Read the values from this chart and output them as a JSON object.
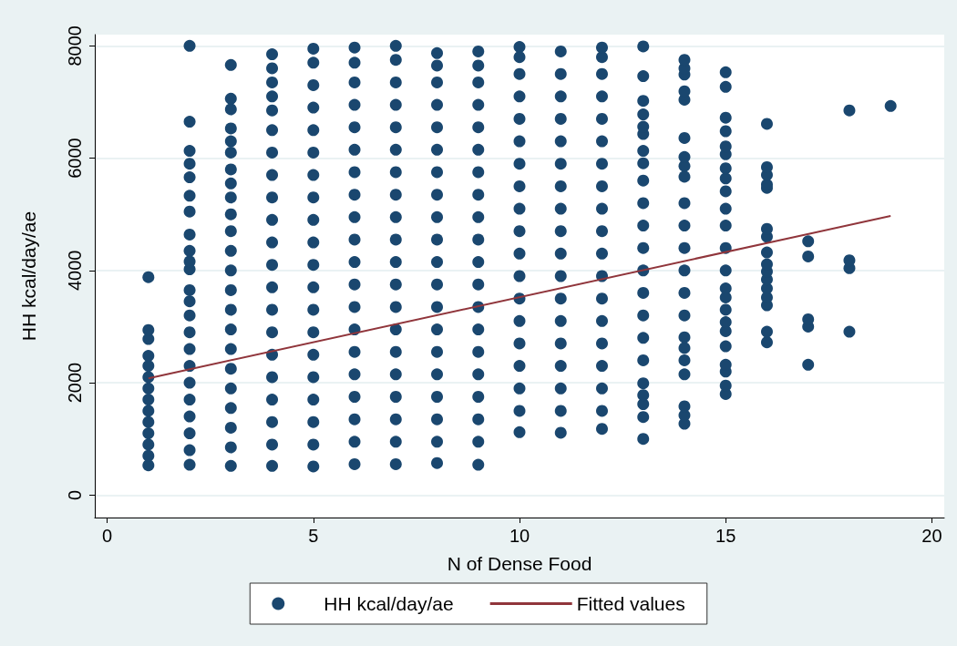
{
  "chart_data": {
    "type": "scatter",
    "xlabel": "N of Dense Food",
    "ylabel": "HH kcal/day/ae",
    "xlim": [
      -0.3,
      20.3
    ],
    "xticks": [
      0,
      5,
      10,
      15,
      20
    ],
    "ylim": [
      -400,
      8200
    ],
    "yticks": [
      0,
      2000,
      4000,
      6000,
      8000
    ],
    "grid": "y",
    "legend": "bottom",
    "series": [
      {
        "name": "HH kcal/day/ae",
        "type": "scatter",
        "color": "#1a476f",
        "marker": "circle",
        "x": [
          1,
          1,
          1,
          1,
          1,
          1,
          1,
          1,
          1,
          1,
          1,
          1,
          1,
          1,
          2,
          2,
          2,
          2,
          2,
          2,
          2,
          2,
          2,
          2,
          2,
          2,
          2,
          2,
          2,
          2,
          2,
          2,
          2,
          2,
          2,
          2,
          2,
          3,
          3,
          3,
          3,
          3,
          3,
          3,
          3,
          3,
          3,
          3,
          3,
          3,
          3,
          3,
          3,
          3,
          3,
          3,
          3,
          3,
          3,
          3,
          4,
          4,
          4,
          4,
          4,
          4,
          4,
          4,
          4,
          4,
          4,
          4,
          4,
          4,
          4,
          4,
          4,
          4,
          4,
          4,
          4,
          5,
          5,
          5,
          5,
          5,
          5,
          5,
          5,
          5,
          5,
          5,
          5,
          5,
          5,
          5,
          5,
          5,
          5,
          5,
          5,
          6,
          6,
          6,
          6,
          6,
          6,
          6,
          6,
          6,
          6,
          6,
          6,
          6,
          6,
          6,
          6,
          6,
          6,
          6,
          6,
          7,
          7,
          7,
          7,
          7,
          7,
          7,
          7,
          7,
          7,
          7,
          7,
          7,
          7,
          7,
          7,
          7,
          7,
          7,
          7,
          8,
          8,
          8,
          8,
          8,
          8,
          8,
          8,
          8,
          8,
          8,
          8,
          8,
          8,
          8,
          8,
          8,
          8,
          8,
          8,
          9,
          9,
          9,
          9,
          9,
          9,
          9,
          9,
          9,
          9,
          9,
          9,
          9,
          9,
          9,
          9,
          9,
          9,
          9,
          9,
          10,
          10,
          10,
          10,
          10,
          10,
          10,
          10,
          10,
          10,
          10,
          10,
          10,
          10,
          10,
          10,
          10,
          10,
          10,
          11,
          11,
          11,
          11,
          11,
          11,
          11,
          11,
          11,
          11,
          11,
          11,
          11,
          11,
          11,
          11,
          11,
          11,
          12,
          12,
          12,
          12,
          12,
          12,
          12,
          12,
          12,
          12,
          12,
          12,
          12,
          12,
          12,
          12,
          12,
          12,
          12,
          13,
          13,
          13,
          13,
          13,
          13,
          13,
          13,
          13,
          13,
          13,
          13,
          13,
          13,
          13,
          13,
          13,
          13,
          13,
          13,
          13,
          13,
          14,
          14,
          14,
          14,
          14,
          14,
          14,
          14,
          14,
          14,
          14,
          14,
          14,
          14,
          14,
          14,
          14,
          14,
          14,
          14,
          14,
          14,
          15,
          15,
          15,
          15,
          15,
          15,
          15,
          15,
          15,
          15,
          15,
          15,
          15,
          15,
          15,
          15,
          15,
          15,
          15,
          15,
          15,
          15,
          15,
          16,
          16,
          16,
          16,
          16,
          16,
          16,
          16,
          16,
          16,
          16,
          16,
          16,
          16,
          16,
          16,
          17,
          17,
          17,
          17,
          17,
          18,
          18,
          18,
          18,
          19
        ],
        "values": [
          530,
          700,
          900,
          1100,
          1300,
          1500,
          1700,
          1900,
          2100,
          2300,
          2480,
          2780,
          2940,
          3880,
          540,
          800,
          1100,
          1400,
          1700,
          2000,
          2300,
          2600,
          2900,
          3200,
          3450,
          3650,
          4020,
          4160,
          4350,
          4640,
          5050,
          5330,
          5660,
          5900,
          6130,
          6650,
          8000,
          520,
          850,
          1200,
          1550,
          1900,
          2250,
          2600,
          2950,
          3300,
          3650,
          4000,
          4350,
          4700,
          5000,
          5300,
          5550,
          5800,
          6100,
          6300,
          6530,
          6870,
          7060,
          7660,
          520,
          900,
          1300,
          1700,
          2100,
          2500,
          2900,
          3300,
          3700,
          4100,
          4500,
          4900,
          5300,
          5700,
          6100,
          6500,
          6850,
          7100,
          7350,
          7600,
          7850,
          510,
          900,
          1300,
          1700,
          2100,
          2500,
          2900,
          3300,
          3700,
          4100,
          4500,
          4900,
          5300,
          5700,
          6100,
          6500,
          6900,
          7300,
          7700,
          7950,
          550,
          950,
          1350,
          1750,
          2150,
          2550,
          2950,
          3350,
          3750,
          4150,
          4550,
          4950,
          5350,
          5750,
          6150,
          6550,
          6950,
          7350,
          7700,
          7970,
          550,
          950,
          1350,
          1750,
          2150,
          2550,
          2950,
          3350,
          3750,
          4150,
          4550,
          4950,
          5350,
          5750,
          6150,
          6550,
          6950,
          7350,
          7750,
          8000,
          570,
          950,
          1350,
          1750,
          2150,
          2550,
          2950,
          3350,
          3750,
          4150,
          4550,
          4950,
          5350,
          5750,
          6150,
          6550,
          6950,
          7350,
          7650,
          7870,
          540,
          950,
          1350,
          1750,
          2150,
          2550,
          2950,
          3350,
          3750,
          4150,
          4550,
          4950,
          5350,
          5750,
          6150,
          6550,
          6950,
          7350,
          7650,
          7900,
          1120,
          1500,
          1900,
          2300,
          2700,
          3100,
          3500,
          3900,
          4300,
          4700,
          5100,
          5500,
          5900,
          6300,
          6700,
          7100,
          7500,
          7800,
          7980,
          1110,
          1500,
          1900,
          2300,
          2700,
          3100,
          3500,
          3900,
          4300,
          4700,
          5100,
          5500,
          5900,
          6300,
          6700,
          7100,
          7500,
          7900,
          1180,
          1500,
          1900,
          2300,
          2700,
          3100,
          3500,
          3900,
          4300,
          4700,
          5100,
          5500,
          5900,
          6300,
          6700,
          7100,
          7500,
          7800,
          7970,
          1000,
          1390,
          1620,
          1780,
          1990,
          2400,
          2800,
          3200,
          3600,
          4000,
          4400,
          4800,
          5200,
          5600,
          5910,
          6130,
          6430,
          6560,
          6780,
          7020,
          7460,
          7990,
          1270,
          1420,
          1580,
          2150,
          2400,
          2620,
          2810,
          3200,
          3600,
          4000,
          4400,
          4800,
          5200,
          5670,
          5860,
          6020,
          6360,
          7040,
          7190,
          7490,
          7600,
          7750,
          1800,
          1950,
          2200,
          2320,
          2650,
          2920,
          3080,
          3300,
          3520,
          3680,
          4000,
          4400,
          4800,
          5100,
          5410,
          5640,
          5820,
          6070,
          6210,
          6480,
          6720,
          7270,
          7530,
          2720,
          2910,
          3380,
          3520,
          3680,
          3840,
          3980,
          4110,
          4320,
          4600,
          4740,
          5470,
          5530,
          5700,
          5840,
          6610,
          2320,
          3000,
          3130,
          4250,
          4520,
          2910,
          4040,
          4180,
          6850,
          6930
        ]
      },
      {
        "name": "Fitted values",
        "type": "line",
        "color": "#90353b",
        "x": [
          1,
          19
        ],
        "values": [
          2080,
          4970
        ]
      }
    ]
  }
}
